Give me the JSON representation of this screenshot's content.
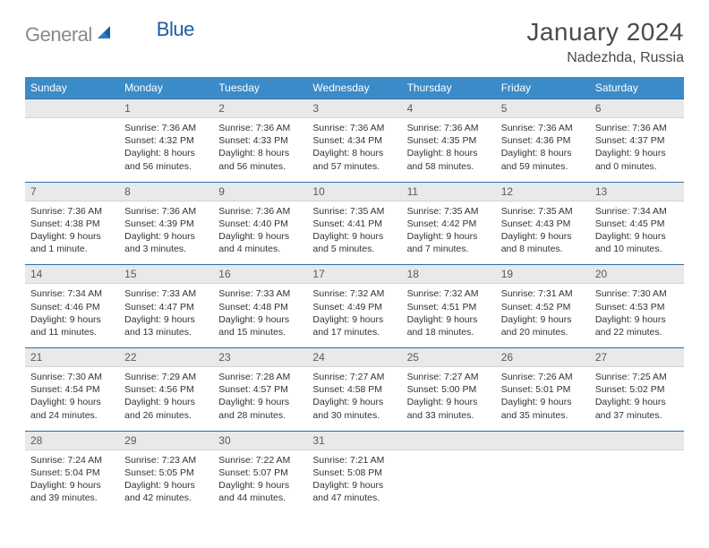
{
  "brand": {
    "word1": "General",
    "word2": "Blue"
  },
  "title": "January 2024",
  "location": "Nadezhda, Russia",
  "colors": {
    "header_bg": "#3b8bc9",
    "header_text": "#ffffff",
    "daynum_bg": "#e9e9e9",
    "daynum_border_top": "#2d6ea8",
    "brand_gray": "#8a8a8a",
    "brand_blue": "#1a5da6"
  },
  "dow": [
    "Sunday",
    "Monday",
    "Tuesday",
    "Wednesday",
    "Thursday",
    "Friday",
    "Saturday"
  ],
  "weeks": [
    {
      "nums": [
        "",
        "1",
        "2",
        "3",
        "4",
        "5",
        "6"
      ],
      "texts": [
        "",
        "Sunrise: 7:36 AM\nSunset: 4:32 PM\nDaylight: 8 hours and 56 minutes.",
        "Sunrise: 7:36 AM\nSunset: 4:33 PM\nDaylight: 8 hours and 56 minutes.",
        "Sunrise: 7:36 AM\nSunset: 4:34 PM\nDaylight: 8 hours and 57 minutes.",
        "Sunrise: 7:36 AM\nSunset: 4:35 PM\nDaylight: 8 hours and 58 minutes.",
        "Sunrise: 7:36 AM\nSunset: 4:36 PM\nDaylight: 8 hours and 59 minutes.",
        "Sunrise: 7:36 AM\nSunset: 4:37 PM\nDaylight: 9 hours and 0 minutes."
      ]
    },
    {
      "nums": [
        "7",
        "8",
        "9",
        "10",
        "11",
        "12",
        "13"
      ],
      "texts": [
        "Sunrise: 7:36 AM\nSunset: 4:38 PM\nDaylight: 9 hours and 1 minute.",
        "Sunrise: 7:36 AM\nSunset: 4:39 PM\nDaylight: 9 hours and 3 minutes.",
        "Sunrise: 7:36 AM\nSunset: 4:40 PM\nDaylight: 9 hours and 4 minutes.",
        "Sunrise: 7:35 AM\nSunset: 4:41 PM\nDaylight: 9 hours and 5 minutes.",
        "Sunrise: 7:35 AM\nSunset: 4:42 PM\nDaylight: 9 hours and 7 minutes.",
        "Sunrise: 7:35 AM\nSunset: 4:43 PM\nDaylight: 9 hours and 8 minutes.",
        "Sunrise: 7:34 AM\nSunset: 4:45 PM\nDaylight: 9 hours and 10 minutes."
      ]
    },
    {
      "nums": [
        "14",
        "15",
        "16",
        "17",
        "18",
        "19",
        "20"
      ],
      "texts": [
        "Sunrise: 7:34 AM\nSunset: 4:46 PM\nDaylight: 9 hours and 11 minutes.",
        "Sunrise: 7:33 AM\nSunset: 4:47 PM\nDaylight: 9 hours and 13 minutes.",
        "Sunrise: 7:33 AM\nSunset: 4:48 PM\nDaylight: 9 hours and 15 minutes.",
        "Sunrise: 7:32 AM\nSunset: 4:49 PM\nDaylight: 9 hours and 17 minutes.",
        "Sunrise: 7:32 AM\nSunset: 4:51 PM\nDaylight: 9 hours and 18 minutes.",
        "Sunrise: 7:31 AM\nSunset: 4:52 PM\nDaylight: 9 hours and 20 minutes.",
        "Sunrise: 7:30 AM\nSunset: 4:53 PM\nDaylight: 9 hours and 22 minutes."
      ]
    },
    {
      "nums": [
        "21",
        "22",
        "23",
        "24",
        "25",
        "26",
        "27"
      ],
      "texts": [
        "Sunrise: 7:30 AM\nSunset: 4:54 PM\nDaylight: 9 hours and 24 minutes.",
        "Sunrise: 7:29 AM\nSunset: 4:56 PM\nDaylight: 9 hours and 26 minutes.",
        "Sunrise: 7:28 AM\nSunset: 4:57 PM\nDaylight: 9 hours and 28 minutes.",
        "Sunrise: 7:27 AM\nSunset: 4:58 PM\nDaylight: 9 hours and 30 minutes.",
        "Sunrise: 7:27 AM\nSunset: 5:00 PM\nDaylight: 9 hours and 33 minutes.",
        "Sunrise: 7:26 AM\nSunset: 5:01 PM\nDaylight: 9 hours and 35 minutes.",
        "Sunrise: 7:25 AM\nSunset: 5:02 PM\nDaylight: 9 hours and 37 minutes."
      ]
    },
    {
      "nums": [
        "28",
        "29",
        "30",
        "31",
        "",
        "",
        ""
      ],
      "texts": [
        "Sunrise: 7:24 AM\nSunset: 5:04 PM\nDaylight: 9 hours and 39 minutes.",
        "Sunrise: 7:23 AM\nSunset: 5:05 PM\nDaylight: 9 hours and 42 minutes.",
        "Sunrise: 7:22 AM\nSunset: 5:07 PM\nDaylight: 9 hours and 44 minutes.",
        "Sunrise: 7:21 AM\nSunset: 5:08 PM\nDaylight: 9 hours and 47 minutes.",
        "",
        "",
        ""
      ]
    }
  ]
}
